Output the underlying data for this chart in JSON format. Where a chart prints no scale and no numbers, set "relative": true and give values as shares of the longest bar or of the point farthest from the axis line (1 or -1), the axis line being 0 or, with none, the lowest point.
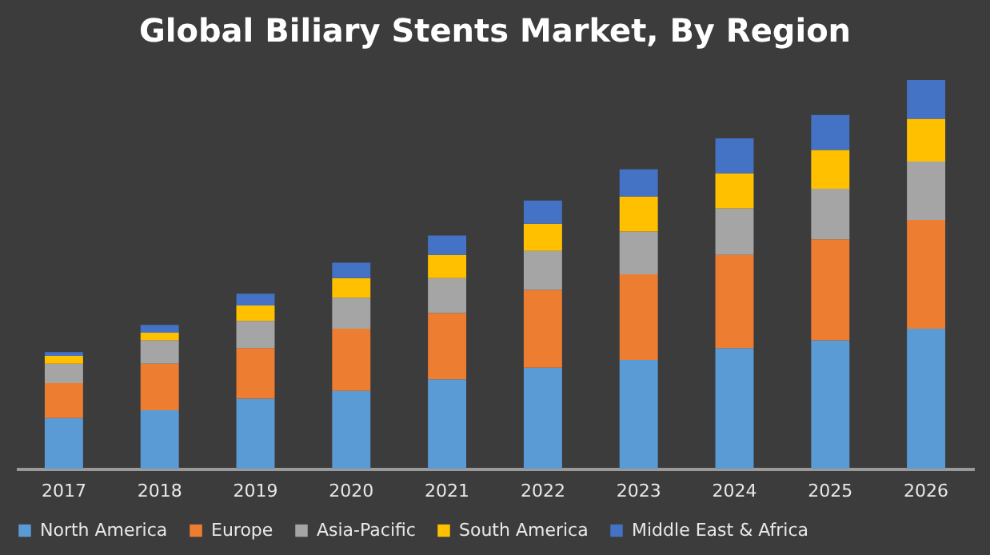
{
  "chart_data": {
    "type": "bar",
    "title": "Global Biliary Stents Market, By Region",
    "relative": true,
    "stacked": true,
    "legend": "bottom",
    "categories": [
      "2017",
      "2018",
      "2019",
      "2020",
      "2021",
      "2022",
      "2023",
      "2024",
      "2025",
      "2026"
    ],
    "series": [
      {
        "name": "North America",
        "color": "#5b9bd5",
        "values": [
          0.13,
          0.15,
          0.18,
          0.2,
          0.23,
          0.26,
          0.28,
          0.31,
          0.33,
          0.36
        ]
      },
      {
        "name": "Europe",
        "color": "#ed7d31",
        "values": [
          0.09,
          0.12,
          0.13,
          0.16,
          0.17,
          0.2,
          0.22,
          0.24,
          0.26,
          0.28
        ]
      },
      {
        "name": "Asia-Pacific",
        "color": "#a5a5a5",
        "values": [
          0.05,
          0.06,
          0.07,
          0.08,
          0.09,
          0.1,
          0.11,
          0.12,
          0.13,
          0.15
        ]
      },
      {
        "name": "South America",
        "color": "#ffc000",
        "values": [
          0.02,
          0.02,
          0.04,
          0.05,
          0.06,
          0.07,
          0.09,
          0.09,
          0.1,
          0.11
        ]
      },
      {
        "name": "Middle East & Africa",
        "color": "#4472c4",
        "values": [
          0.01,
          0.02,
          0.03,
          0.04,
          0.05,
          0.06,
          0.07,
          0.09,
          0.09,
          0.1
        ]
      }
    ]
  }
}
